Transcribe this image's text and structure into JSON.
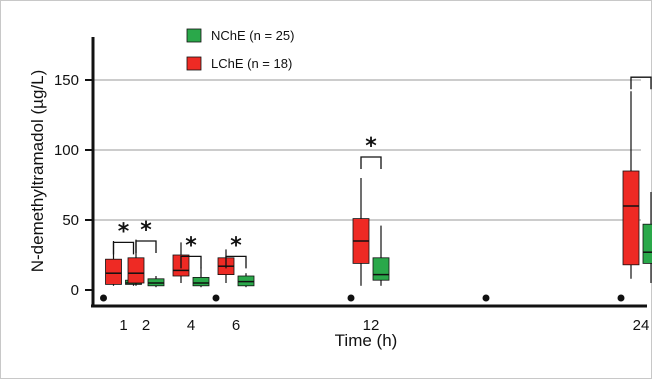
{
  "chart_data": {
    "type": "box",
    "ylabel": "N-demethyltramadol (µg/L)",
    "xlabel": "Time (h)",
    "ylim": [
      0,
      175
    ],
    "yticks": [
      0,
      50,
      100,
      150
    ],
    "grid": "horizontal",
    "legend_position": "top-left",
    "categories": [
      "1",
      "2",
      "4",
      "6",
      "12",
      "24"
    ],
    "series": [
      {
        "name": "NChE (n = 25)",
        "color": "#2aa84a",
        "boxes": [
          {
            "time": "1",
            "min": 3,
            "q1": 4,
            "median": 5,
            "q3": 7,
            "max": 9
          },
          {
            "time": "2",
            "min": 2,
            "q1": 3,
            "median": 5,
            "q3": 8,
            "max": 10
          },
          {
            "time": "4",
            "min": 2,
            "q1": 3,
            "median": 5,
            "q3": 9,
            "max": 16
          },
          {
            "time": "6",
            "min": 2,
            "q1": 3,
            "median": 6,
            "q3": 10,
            "max": 12
          },
          {
            "time": "12",
            "min": 3,
            "q1": 7,
            "median": 11,
            "q3": 23,
            "max": 46
          },
          {
            "time": "24",
            "min": 5,
            "q1": 19,
            "median": 27,
            "q3": 47,
            "max": 70
          }
        ]
      },
      {
        "name": "LChE (n = 18)",
        "color": "#ee2a24",
        "boxes": [
          {
            "time": "1",
            "min": 3,
            "q1": 4,
            "median": 12,
            "q3": 22,
            "max": 35
          },
          {
            "time": "2",
            "min": 3,
            "q1": 5,
            "median": 12,
            "q3": 23,
            "max": 36
          },
          {
            "time": "4",
            "min": 5,
            "q1": 10,
            "median": 14,
            "q3": 25,
            "max": 34
          },
          {
            "time": "6",
            "min": 5,
            "q1": 11,
            "median": 17,
            "q3": 23,
            "max": 29
          },
          {
            "time": "12",
            "min": 3,
            "q1": 19,
            "median": 35,
            "q3": 51,
            "max": 80
          },
          {
            "time": "24",
            "min": 8,
            "q1": 18,
            "median": 60,
            "q3": 85,
            "max": 142
          }
        ]
      }
    ],
    "significance": [
      {
        "time": "1",
        "label": "*"
      },
      {
        "time": "2",
        "label": "*"
      },
      {
        "time": "4",
        "label": "*"
      },
      {
        "time": "6",
        "label": "*"
      },
      {
        "time": "12",
        "label": "*"
      },
      {
        "time": "24",
        "label": ""
      }
    ],
    "bracket_tops": [
      {
        "time": "1",
        "value": 34
      },
      {
        "time": "2",
        "value": 35
      },
      {
        "time": "4",
        "value": 24
      },
      {
        "time": "6",
        "value": 24
      },
      {
        "time": "12",
        "value": 95
      },
      {
        "time": "24",
        "value": 152
      }
    ],
    "baseline_dots": [
      "1",
      "6",
      "12",
      "18",
      "24"
    ]
  }
}
